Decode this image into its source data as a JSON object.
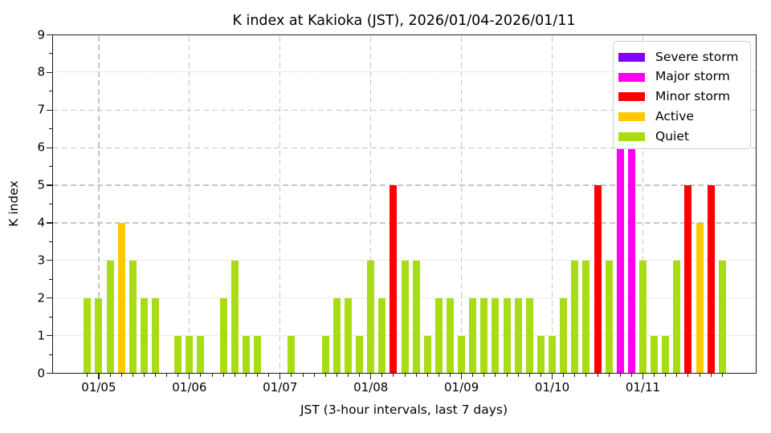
{
  "chart_data": {
    "type": "bar",
    "title": "K index at Kakioka (JST), 2026/01/04-2026/01/11",
    "xlabel": "JST (3-hour intervals, last 7 days)",
    "ylabel": "K index",
    "ylim": [
      0,
      9
    ],
    "yticks": [
      0,
      1,
      2,
      3,
      4,
      5,
      6,
      7,
      8,
      9
    ],
    "xtick_labels": [
      "01/05",
      "01/06",
      "01/07",
      "01/08",
      "01/09",
      "01/10",
      "01/11"
    ],
    "interval_hours": 3,
    "grid": {
      "dashed_levels": [
        4,
        5,
        6,
        7
      ],
      "dotted_levels": [
        1,
        2,
        3,
        8
      ]
    },
    "legend_position": "upper right",
    "legend": [
      {
        "key": "severe",
        "label": "Severe storm",
        "color": "#7f00ff"
      },
      {
        "key": "major",
        "label": "Major storm",
        "color": "#ff00ee"
      },
      {
        "key": "minor",
        "label": "Minor storm",
        "color": "#ff0000"
      },
      {
        "key": "active",
        "label": "Active",
        "color": "#ffc800"
      },
      {
        "key": "quiet",
        "label": "Quiet",
        "color": "#a8dc14"
      }
    ],
    "category_rule": {
      "quiet_max": 3,
      "active": 4,
      "minor": 5,
      "major": 6,
      "severe_min": 7
    },
    "points": [
      {
        "t": "01/04 21:00",
        "k": 2
      },
      {
        "t": "01/05 00:00",
        "k": 2
      },
      {
        "t": "01/05 03:00",
        "k": 3
      },
      {
        "t": "01/05 06:00",
        "k": 4
      },
      {
        "t": "01/05 09:00",
        "k": 3
      },
      {
        "t": "01/05 12:00",
        "k": 2
      },
      {
        "t": "01/05 15:00",
        "k": 2
      },
      {
        "t": "01/05 18:00",
        "k": 0
      },
      {
        "t": "01/05 21:00",
        "k": 1
      },
      {
        "t": "01/06 00:00",
        "k": 1
      },
      {
        "t": "01/06 03:00",
        "k": 1
      },
      {
        "t": "01/06 06:00",
        "k": 0
      },
      {
        "t": "01/06 09:00",
        "k": 2
      },
      {
        "t": "01/06 12:00",
        "k": 3
      },
      {
        "t": "01/06 15:00",
        "k": 1
      },
      {
        "t": "01/06 18:00",
        "k": 1
      },
      {
        "t": "01/06 21:00",
        "k": 0
      },
      {
        "t": "01/07 00:00",
        "k": 0
      },
      {
        "t": "01/07 03:00",
        "k": 1
      },
      {
        "t": "01/07 06:00",
        "k": 0
      },
      {
        "t": "01/07 09:00",
        "k": 0
      },
      {
        "t": "01/07 12:00",
        "k": 1
      },
      {
        "t": "01/07 15:00",
        "k": 2
      },
      {
        "t": "01/07 18:00",
        "k": 2
      },
      {
        "t": "01/07 21:00",
        "k": 1
      },
      {
        "t": "01/08 00:00",
        "k": 3
      },
      {
        "t": "01/08 03:00",
        "k": 2
      },
      {
        "t": "01/08 06:00",
        "k": 5
      },
      {
        "t": "01/08 09:00",
        "k": 3
      },
      {
        "t": "01/08 12:00",
        "k": 3
      },
      {
        "t": "01/08 15:00",
        "k": 1
      },
      {
        "t": "01/08 18:00",
        "k": 2
      },
      {
        "t": "01/08 21:00",
        "k": 2
      },
      {
        "t": "01/09 00:00",
        "k": 1
      },
      {
        "t": "01/09 03:00",
        "k": 2
      },
      {
        "t": "01/09 06:00",
        "k": 2
      },
      {
        "t": "01/09 09:00",
        "k": 2
      },
      {
        "t": "01/09 12:00",
        "k": 2
      },
      {
        "t": "01/09 15:00",
        "k": 2
      },
      {
        "t": "01/09 18:00",
        "k": 2
      },
      {
        "t": "01/09 21:00",
        "k": 1
      },
      {
        "t": "01/10 00:00",
        "k": 1
      },
      {
        "t": "01/10 03:00",
        "k": 2
      },
      {
        "t": "01/10 06:00",
        "k": 3
      },
      {
        "t": "01/10 09:00",
        "k": 3
      },
      {
        "t": "01/10 12:00",
        "k": 5
      },
      {
        "t": "01/10 15:00",
        "k": 3
      },
      {
        "t": "01/10 18:00",
        "k": 6
      },
      {
        "t": "01/10 21:00",
        "k": 6
      },
      {
        "t": "01/11 00:00",
        "k": 3
      },
      {
        "t": "01/11 03:00",
        "k": 1
      },
      {
        "t": "01/11 06:00",
        "k": 1
      },
      {
        "t": "01/11 09:00",
        "k": 3
      },
      {
        "t": "01/11 12:00",
        "k": 5
      },
      {
        "t": "01/11 15:00",
        "k": 4
      },
      {
        "t": "01/11 18:00",
        "k": 5
      },
      {
        "t": "01/11 21:00",
        "k": 3
      }
    ]
  }
}
